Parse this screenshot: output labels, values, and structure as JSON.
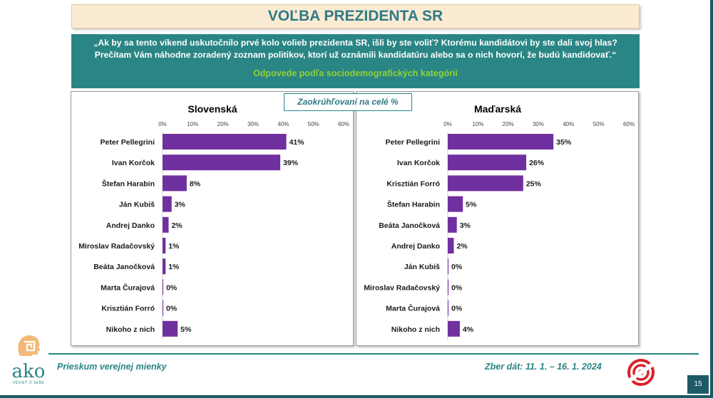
{
  "header": {
    "title": "VOĽBA PREZIDENTA SR",
    "question_line1": "„Ak by sa tento víkend uskutočnilo prvé kolo volieb prezidenta SR, išli by ste voliť? Ktorému kandidátovi by ste dali svoj hlas?",
    "question_line2": "Prečítam Vám náhodne zoradený zoznam politikov, ktorí už oznámili kandidatúru alebo sa o nich hovorí, že budú kandidovať.“",
    "subtitle": "Odpovede podľa sociodemografických kategórií"
  },
  "note": "Zaokrúhľovaní na celé %",
  "colors": {
    "bar": "#7030a0",
    "accent": "#2a8585",
    "title": "#2e7b86",
    "green": "#8fd13a"
  },
  "chart_data": [
    {
      "type": "bar",
      "orientation": "horizontal",
      "title": "Slovenská",
      "xlim": [
        0,
        60
      ],
      "ticks": [
        "0%",
        "10%",
        "20%",
        "30%",
        "40%",
        "50%",
        "60%"
      ],
      "categories": [
        "Peter Pellegrini",
        "Ivan Korčok",
        "Štefan Harabin",
        "Ján Kubiš",
        "Andrej Danko",
        "Miroslav Radačovský",
        "Beáta Janočková",
        "Marta Čurajová",
        "Krisztián Forró",
        "Nikoho z nich"
      ],
      "values": [
        41,
        39,
        8,
        3,
        2,
        1,
        1,
        0,
        0,
        5
      ],
      "labels": [
        "41%",
        "39%",
        "8%",
        "3%",
        "2%",
        "1%",
        "1%",
        "0%",
        "0%",
        "5%"
      ]
    },
    {
      "type": "bar",
      "orientation": "horizontal",
      "title": "Maďarská",
      "xlim": [
        0,
        60
      ],
      "ticks": [
        "0%",
        "10%",
        "20%",
        "30%",
        "40%",
        "50%",
        "60%"
      ],
      "categories": [
        "Peter Pellegrini",
        "Ivan Korčok",
        "Krisztián Forró",
        "Štefan Harabin",
        "Beáta Janočková",
        "Andrej Danko",
        "Ján Kubiš",
        "Miroslav Radačovský",
        "Marta Čurajová",
        "Nikoho z nich"
      ],
      "values": [
        35,
        26,
        25,
        5,
        3,
        2,
        0,
        0,
        0,
        4
      ],
      "labels": [
        "35%",
        "26%",
        "25%",
        "5%",
        "3%",
        "2%",
        "0%",
        "0%",
        "0%",
        "4%"
      ]
    }
  ],
  "footer": {
    "left": "Prieskum verejnej mienky",
    "right": "Zber dát: 11. 1. – 16. 1. 2024",
    "logo_text": "ako",
    "logo_tagline": "VEDIEŤ O SEBE",
    "page_number": "15"
  }
}
